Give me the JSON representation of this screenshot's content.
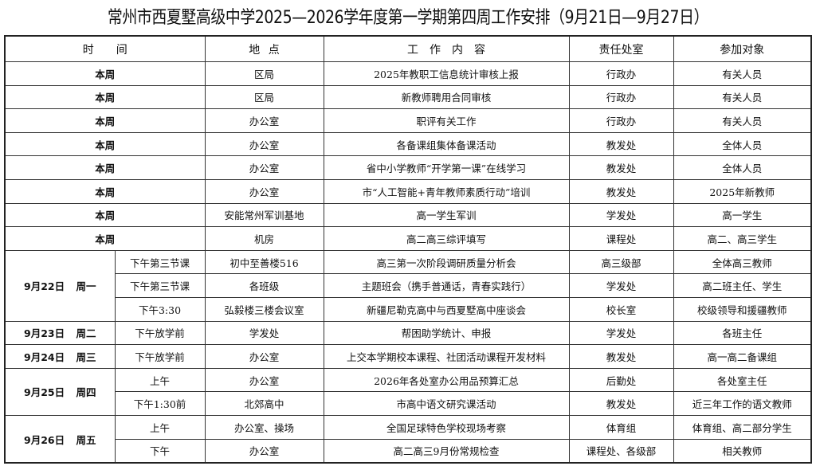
{
  "title": "常州市西夏墅高级中学2025—2026学年度第一学期第四周工作安排（9月21日—9月27日）",
  "headers": [
    "时　　间",
    "地 点",
    "工　作　内　容",
    "责任处室",
    "参加对象"
  ],
  "weekly_rows": [
    {
      "time": "本周",
      "location": "区局",
      "content": "2025年教职工信息统计审核上报",
      "dept": "行政办",
      "participants": "有关人员"
    },
    {
      "time": "本周",
      "location": "区局",
      "content": "新教师聘用合同审核",
      "dept": "行政办",
      "participants": "有关人员"
    },
    {
      "time": "本周",
      "location": "办公室",
      "content": "职评有关工作",
      "dept": "行政办",
      "participants": "有关人员"
    },
    {
      "time": "本周",
      "location": "办公室",
      "content": "各备课组集体备课活动",
      "dept": "教发处",
      "participants": "全体人员"
    },
    {
      "time": "本周",
      "location": "办公室",
      "content": "省中小学教师“开学第一课”在线学习",
      "dept": "教发处",
      "participants": "全体人员"
    },
    {
      "time": "本周",
      "location": "办公室",
      "content": "市“人工智能+青年教师素质行动”培训",
      "dept": "教发处",
      "participants": "2025年新教师"
    },
    {
      "time": "本周",
      "location": "安能常州军训基地",
      "content": "高一学生军训",
      "dept": "学发处",
      "participants": "高一学生"
    },
    {
      "time": "本周",
      "location": "机房",
      "content": "高二高三综评填写",
      "dept": "课程处",
      "participants": "高二、高三学生"
    }
  ],
  "days": [
    {
      "day": "9月22日 周一",
      "items": [
        {
          "time": "下午第三节课",
          "location": "初中至善楼516",
          "content": "高三第一次阶段调研质量分析会",
          "dept": "高三级部",
          "participants": "全体高三教师"
        },
        {
          "time": "下午第三节课",
          "location": "各班级",
          "content": "主题班会（携手普通话，青春实践行）",
          "dept": "学发处",
          "participants": "高二班主任、学生"
        },
        {
          "time": "下午3:30",
          "location": "弘毅楼三楼会议室",
          "content": "新疆尼勒克高中与西夏墅高中座谈会",
          "dept": "校长室",
          "participants": "校级领导和援疆教师"
        }
      ]
    },
    {
      "day": "9月23日 周二",
      "items": [
        {
          "time": "下午放学前",
          "location": "学发处",
          "content": "帮困助学统计、申报",
          "dept": "学发处",
          "participants": "各班主任"
        }
      ]
    },
    {
      "day": "9月24日 周三",
      "items": [
        {
          "time": "下午放学前",
          "location": "办公室",
          "content": "上交本学期校本课程、社团活动课程开发材料",
          "dept": "教发处",
          "participants": "高一高二备课组"
        }
      ]
    },
    {
      "day": "9月25日 周四",
      "items": [
        {
          "time": "上午",
          "location": "办公室",
          "content": "2026年各处室办公用品预算汇总",
          "dept": "后勤处",
          "participants": "各处室主任"
        },
        {
          "time": "下午1:30前",
          "location": "北郊高中",
          "content": "市高中语文研究课活动",
          "dept": "教发处",
          "participants": "近三年工作的语文教师"
        }
      ]
    },
    {
      "day": "9月26日 周五",
      "items": [
        {
          "time": "上午",
          "location": "办公室、操场",
          "content": "全国足球特色学校现场考察",
          "dept": "体育组",
          "participants": "体育组、高二部分学生"
        },
        {
          "time": "下午",
          "location": "办公室",
          "content": "高二高三9月份常规检查",
          "dept": "课程处、各级部",
          "participants": "相关教师"
        }
      ]
    }
  ]
}
